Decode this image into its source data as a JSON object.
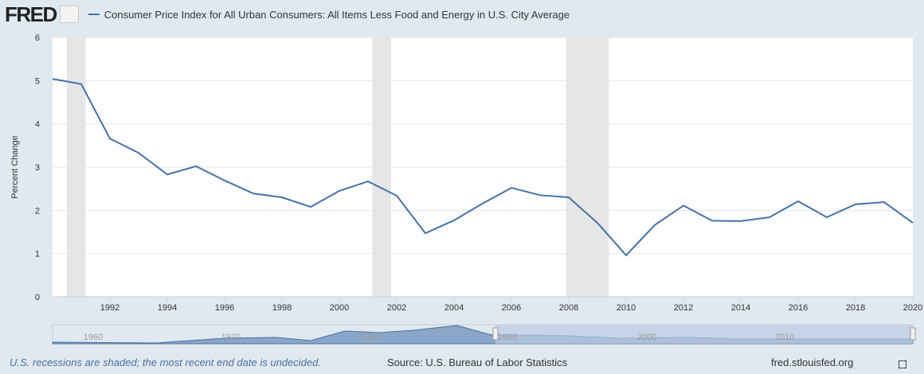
{
  "header": {
    "logo": "FRED",
    "legend_label": "Consumer Price Index for All Urban Consumers: All Items Less Food and Energy in U.S. City Average"
  },
  "footer": {
    "note": "U.S. recessions are shaded; the most recent end date is undecided.",
    "source": "Source: U.S. Bureau of Labor Statistics",
    "site": "fred.stlouisfed.org"
  },
  "colors": {
    "line": "#4572a7",
    "recession": "#e6e6e6",
    "navigator_fill": "#8aa6c8",
    "navigator_selected": "#bccbe2"
  },
  "chart_data": {
    "type": "line",
    "title": "Consumer Price Index for All Urban Consumers: All Items Less Food and Energy in U.S. City Average",
    "xlabel": "",
    "ylabel": "Percent Change",
    "ylim": [
      0,
      6
    ],
    "xlim": [
      1990,
      2020
    ],
    "yticks": [
      "0",
      "1",
      "2",
      "3",
      "4",
      "5",
      "6"
    ],
    "xticks": [
      "1992",
      "1994",
      "1996",
      "1998",
      "2000",
      "2002",
      "2004",
      "2006",
      "2008",
      "2010",
      "2012",
      "2014",
      "2016",
      "2018",
      "2020"
    ],
    "x": [
      1990,
      1991,
      1992,
      1993,
      1994,
      1995,
      1996,
      1997,
      1998,
      1999,
      2000,
      2001,
      2002,
      2003,
      2004,
      2005,
      2006,
      2007,
      2008,
      2009,
      2010,
      2011,
      2012,
      2013,
      2014,
      2015,
      2016,
      2017,
      2018,
      2019,
      2020
    ],
    "series": [
      {
        "name": "Consumer Price Index for All Urban Consumers: All Items Less Food and Energy in U.S. City Average",
        "values": [
          5.04,
          4.92,
          3.66,
          3.33,
          2.83,
          3.02,
          2.69,
          2.39,
          2.3,
          2.08,
          2.45,
          2.67,
          2.34,
          1.47,
          1.77,
          2.16,
          2.52,
          2.35,
          2.3,
          1.71,
          0.96,
          1.66,
          2.11,
          1.76,
          1.75,
          1.84,
          2.21,
          1.84,
          2.14,
          2.19,
          1.71
        ]
      }
    ],
    "recessions": [
      [
        1990.5,
        1991.15
      ],
      [
        2001.15,
        2001.8
      ],
      [
        2007.9,
        2009.4
      ]
    ],
    "grid": true,
    "legend": "top-left",
    "navigator": {
      "labels": [
        "1960",
        "1970",
        "1980",
        "1990",
        "2000",
        "2010"
      ],
      "selected_range": [
        1990,
        2020
      ]
    }
  }
}
